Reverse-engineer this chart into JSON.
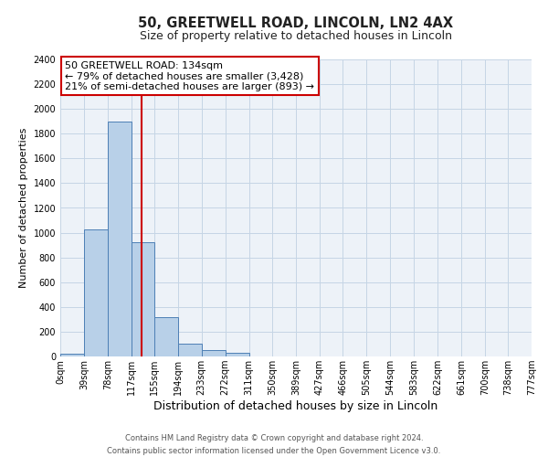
{
  "title": "50, GREETWELL ROAD, LINCOLN, LN2 4AX",
  "subtitle": "Size of property relative to detached houses in Lincoln",
  "xlabel": "Distribution of detached houses by size in Lincoln",
  "ylabel": "Number of detached properties",
  "footer_line1": "Contains HM Land Registry data © Crown copyright and database right 2024.",
  "footer_line2": "Contains public sector information licensed under the Open Government Licence v3.0.",
  "annotation_title": "50 GREETWELL ROAD: 134sqm",
  "annotation_line1": "← 79% of detached houses are smaller (3,428)",
  "annotation_line2": "21% of semi-detached houses are larger (893) →",
  "bin_edges": [
    0,
    39,
    78,
    117,
    155,
    194,
    233,
    272,
    311,
    350,
    389,
    427,
    466,
    505,
    544,
    583,
    622,
    661,
    700,
    738,
    777
  ],
  "bin_values": [
    25,
    1025,
    1900,
    920,
    320,
    105,
    50,
    28,
    0,
    0,
    0,
    0,
    0,
    0,
    0,
    0,
    0,
    0,
    0,
    0
  ],
  "bar_color": "#b8d0e8",
  "bar_edge_color": "#4d7fb5",
  "red_line_x": 134,
  "ylim": [
    0,
    2400
  ],
  "yticks": [
    0,
    200,
    400,
    600,
    800,
    1000,
    1200,
    1400,
    1600,
    1800,
    2000,
    2200,
    2400
  ],
  "grid_color": "#c5d5e5",
  "background_color": "#edf2f8",
  "annotation_box_color": "#ffffff",
  "annotation_box_edge": "#cc0000",
  "title_fontsize": 10.5,
  "subtitle_fontsize": 9,
  "xlabel_fontsize": 9,
  "ylabel_fontsize": 8,
  "tick_fontsize": 7,
  "annotation_fontsize": 8,
  "footer_fontsize": 6
}
